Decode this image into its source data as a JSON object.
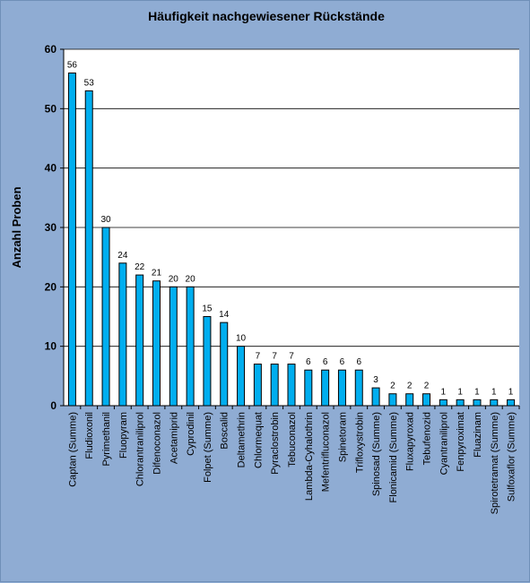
{
  "chart_data": {
    "type": "bar",
    "title": "Häufigkeit nachgewiesener Rückstände",
    "xlabel": "",
    "ylabel": "Anzahl Proben",
    "ylim": [
      0,
      60
    ],
    "yticks": [
      0,
      10,
      20,
      30,
      40,
      50,
      60
    ],
    "grid": true,
    "legend": "none",
    "colors": {
      "bar": "#00aeef",
      "bar_border": "#000000",
      "plot_bg": "#ffffff",
      "frame_bg": "#8facd3",
      "grid": "#000000"
    },
    "categories": [
      "Captan (Summe)",
      "Fludioxonil",
      "Pyrimethanil",
      "Fluopyram",
      "Chlorantraniliprol",
      "Difenoconazol",
      "Acetamiprid",
      "Cyprodinil",
      "Folpet (Summe)",
      "Boscalid",
      "Deltamethrin",
      "Chlormequat",
      "Pyraclostrobin",
      "Tebuconazol",
      "Lambda-Cyhalothrin",
      "Mefentrifluconazol",
      "Spinetoram",
      "Trifloxystrobin",
      "Spinosad (Summe)",
      "Flonicamid (Summe)",
      "Fluxapyroxad",
      "Tebufenozid",
      "Cyantraniliprol",
      "Fenpyroximat",
      "Fluazinam",
      "Spirotetramat (Summe)",
      "Sulfoxaflor (Summe)"
    ],
    "values": [
      56,
      53,
      30,
      24,
      22,
      21,
      20,
      20,
      15,
      14,
      10,
      7,
      7,
      7,
      6,
      6,
      6,
      6,
      3,
      2,
      2,
      2,
      1,
      1,
      1,
      1,
      1
    ]
  }
}
